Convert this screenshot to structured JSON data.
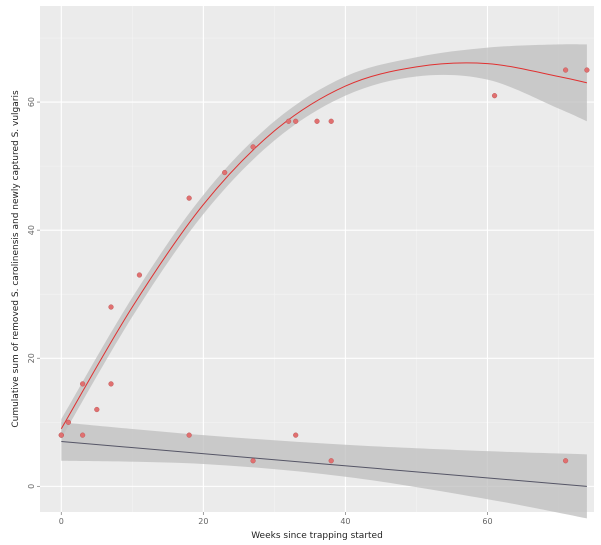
{
  "chart_data": {
    "type": "scatter",
    "title": "",
    "xlabel": "Weeks since trapping started",
    "ylabel": "Cumulative sum of removed S. carolinensis and newly captured S. vulgaris",
    "xlim": [
      -3,
      75
    ],
    "ylim": [
      -4,
      75
    ],
    "x_ticks": [
      0,
      20,
      40,
      60
    ],
    "x_tick_labels": [
      "0",
      "20",
      "40",
      "60"
    ],
    "y_ticks": [
      0,
      20,
      40,
      60
    ],
    "y_tick_labels": [
      "0",
      "20",
      "40",
      "60"
    ],
    "grid": true,
    "panel_background": "#ebebeb",
    "series": [
      {
        "color": "#e07070",
        "points": [
          {
            "x": 0,
            "y": 8
          },
          {
            "x": 1,
            "y": 10
          },
          {
            "x": 3,
            "y": 16
          },
          {
            "x": 5,
            "y": 12
          },
          {
            "x": 7,
            "y": 16
          },
          {
            "x": 7,
            "y": 28
          },
          {
            "x": 11,
            "y": 33
          },
          {
            "x": 18,
            "y": 45
          },
          {
            "x": 23,
            "y": 49
          },
          {
            "x": 27,
            "y": 53
          },
          {
            "x": 32,
            "y": 57
          },
          {
            "x": 33,
            "y": 57
          },
          {
            "x": 36,
            "y": 57
          },
          {
            "x": 38,
            "y": 57
          },
          {
            "x": 61,
            "y": 61
          },
          {
            "x": 71,
            "y": 65
          },
          {
            "x": 74,
            "y": 65
          }
        ],
        "fit": {
          "line_color": "#e03030",
          "ribbon_color": "#bdbdbd",
          "line": [
            [
              0,
              9
            ],
            [
              10,
              28
            ],
            [
              20,
              44
            ],
            [
              30,
              55.5
            ],
            [
              40,
              62.5
            ],
            [
              50,
              65.5
            ],
            [
              60,
              66
            ],
            [
              70,
              64
            ],
            [
              74,
              63
            ]
          ],
          "lower": [
            [
              0,
              7.5
            ],
            [
              10,
              26.5
            ],
            [
              20,
              42.5
            ],
            [
              30,
              54
            ],
            [
              40,
              61
            ],
            [
              50,
              64
            ],
            [
              60,
              63.5
            ],
            [
              70,
              59
            ],
            [
              74,
              57
            ]
          ],
          "upper": [
            [
              0,
              10.5
            ],
            [
              10,
              29.5
            ],
            [
              20,
              45.5
            ],
            [
              30,
              57
            ],
            [
              40,
              64
            ],
            [
              50,
              67
            ],
            [
              60,
              68.5
            ],
            [
              70,
              69
            ],
            [
              74,
              69
            ]
          ]
        }
      },
      {
        "color": "#e07070",
        "points": [
          {
            "x": 0,
            "y": 8
          },
          {
            "x": 3,
            "y": 8
          },
          {
            "x": 18,
            "y": 8
          },
          {
            "x": 27,
            "y": 4
          },
          {
            "x": 33,
            "y": 8
          },
          {
            "x": 38,
            "y": 4
          },
          {
            "x": 71,
            "y": 4
          }
        ],
        "fit": {
          "line_color": "#555566",
          "ribbon_color": "#bdbdbd",
          "line": [
            [
              0,
              7
            ],
            [
              74,
              0
            ]
          ],
          "lower": [
            [
              0,
              4
            ],
            [
              20,
              3.5
            ],
            [
              40,
              1.5
            ],
            [
              60,
              -2
            ],
            [
              74,
              -5
            ]
          ],
          "upper": [
            [
              0,
              10
            ],
            [
              20,
              8
            ],
            [
              40,
              6.5
            ],
            [
              60,
              5.5
            ],
            [
              74,
              5
            ]
          ]
        }
      }
    ]
  }
}
